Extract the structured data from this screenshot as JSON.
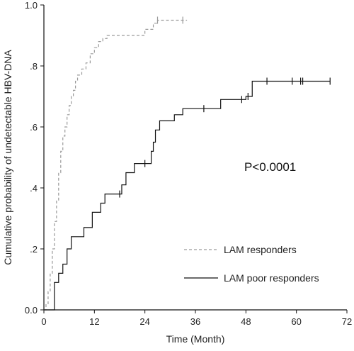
{
  "chart_data": {
    "type": "line",
    "step": true,
    "title": "",
    "xlabel": "Time (Month)",
    "ylabel": "Cumulative probability of undetectable HBV-DNA",
    "xlim": [
      0,
      72
    ],
    "ylim": [
      0,
      1.0
    ],
    "xticks": [
      0,
      12,
      24,
      36,
      48,
      60,
      72
    ],
    "xtick_labels": [
      "0",
      "12",
      "24",
      "36",
      "48",
      "60",
      "72"
    ],
    "yticks": [
      0,
      0.2,
      0.4,
      0.6,
      0.8,
      1.0
    ],
    "ytick_labels": [
      "0.0",
      ".2",
      ".4",
      ".6",
      ".8",
      "1.0"
    ],
    "grid": false,
    "legend_position": "bottom-right",
    "annotation": "P<0.0001",
    "series": [
      {
        "name": "LAM responders",
        "style": "dashed",
        "color": "#9a9a9a",
        "x": [
          0,
          0.5,
          1.0,
          1.5,
          2.0,
          2.5,
          3.0,
          3.5,
          4.0,
          4.5,
          5.0,
          5.5,
          6.0,
          6.5,
          7.0,
          7.5,
          8.0,
          9.0,
          10.0,
          11.0,
          12.0,
          13.0,
          14.0,
          15.0,
          24.0,
          26.0,
          27.0,
          34.0
        ],
        "y": [
          0,
          0.02,
          0.06,
          0.12,
          0.2,
          0.29,
          0.36,
          0.45,
          0.52,
          0.57,
          0.6,
          0.64,
          0.67,
          0.7,
          0.72,
          0.75,
          0.77,
          0.79,
          0.81,
          0.84,
          0.86,
          0.88,
          0.89,
          0.9,
          0.92,
          0.94,
          0.95,
          0.95
        ],
        "censor_x": [
          27.0,
          33.0
        ]
      },
      {
        "name": "LAM  poor responders",
        "style": "solid",
        "color": "#111111",
        "x": [
          0,
          2.5,
          3.5,
          4.5,
          5.5,
          6.5,
          9.5,
          11.5,
          13.5,
          14.5,
          16.5,
          17.5,
          18.5,
          19.5,
          21.5,
          23.5,
          25.5,
          26.0,
          26.5,
          27.5,
          28.5,
          31.0,
          33.0,
          42.0,
          48.0,
          49.5,
          68.0
        ],
        "y": [
          0,
          0.09,
          0.12,
          0.15,
          0.2,
          0.24,
          0.27,
          0.32,
          0.35,
          0.38,
          0.38,
          0.38,
          0.41,
          0.45,
          0.48,
          0.48,
          0.52,
          0.55,
          0.59,
          0.62,
          0.62,
          0.64,
          0.66,
          0.69,
          0.7,
          0.75,
          0.75
        ],
        "censor_x": [
          18.0,
          24.0,
          38.0,
          47.0,
          48.5,
          53.0,
          59.0,
          61.0,
          61.5,
          68.0
        ]
      }
    ]
  }
}
